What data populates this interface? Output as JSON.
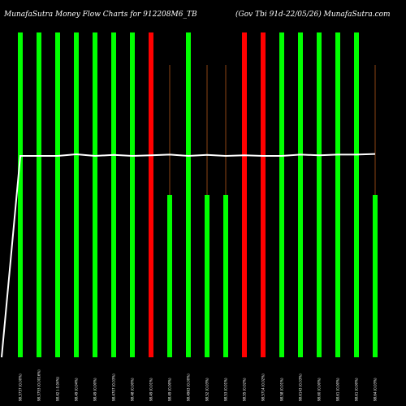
{
  "chart_data": {
    "type": "bar",
    "title": "MunafaSutra Money Flow Charts for 912208M6_TB",
    "subtitle": "(Gov Tbi 91d-22/05/26) MunafaSutra.com",
    "colors": {
      "background": "#000000",
      "up": "#00ff00",
      "down": "#ff0000",
      "line": "#ffffff",
      "wick": "#8b4513"
    },
    "ylim": [
      0,
      1
    ],
    "grid": false,
    "legend": "none",
    "bars": [
      {
        "label": "98.3737 (0.00%)",
        "value": 1.0,
        "color": "up",
        "wick": 1.0
      },
      {
        "label": "98.3753 (0.0016%)",
        "value": 1.0,
        "color": "up",
        "wick": 1.0
      },
      {
        "label": "98.42 (-0.04%)",
        "value": 1.0,
        "color": "up",
        "wick": 1.0
      },
      {
        "label": "98.49 (0.04%)",
        "value": 1.0,
        "color": "up",
        "wick": 1.0
      },
      {
        "label": "98.49 (0.00%)",
        "value": 1.0,
        "color": "up",
        "wick": 1.0
      },
      {
        "label": "98.4707 (0.03%)",
        "value": 1.0,
        "color": "up",
        "wick": 1.0
      },
      {
        "label": "98.48 (0.00%)",
        "value": 1.0,
        "color": "up",
        "wick": 1.0
      },
      {
        "label": "98.49 (0.01%)",
        "value": 1.0,
        "color": "down",
        "wick": 1.0
      },
      {
        "label": "98.49 (0.00%)",
        "value": 0.5,
        "color": "up",
        "wick": 0.9
      },
      {
        "label": "98.4963 (0.00%)",
        "value": 1.0,
        "color": "up",
        "wick": 1.0
      },
      {
        "label": "98.52 (0.03%)",
        "value": 0.5,
        "color": "up",
        "wick": 0.9
      },
      {
        "label": "98.53 (0.01%)",
        "value": 0.5,
        "color": "up",
        "wick": 0.9
      },
      {
        "label": "98.55 (0.02%)",
        "value": 1.0,
        "color": "down",
        "wick": 1.0
      },
      {
        "label": "98.5714 (0.02%)",
        "value": 1.0,
        "color": "down",
        "wick": 1.0
      },
      {
        "label": "98.58 (0.01%)",
        "value": 1.0,
        "color": "up",
        "wick": 1.0
      },
      {
        "label": "98.6143 (0.03%)",
        "value": 1.0,
        "color": "up",
        "wick": 1.0
      },
      {
        "label": "98.60 (0.00%)",
        "value": 1.0,
        "color": "up",
        "wick": 1.0
      },
      {
        "label": "98.61 (0.00%)",
        "value": 1.0,
        "color": "up",
        "wick": 1.0
      },
      {
        "label": "98.61 (0.00%)",
        "value": 1.0,
        "color": "up",
        "wick": 1.0
      },
      {
        "label": "98.64 (0.03%)",
        "value": 0.5,
        "color": "up",
        "wick": 0.9
      }
    ],
    "price_line": [
      0.0,
      0.62,
      0.62,
      0.62,
      0.625,
      0.62,
      0.623,
      0.62,
      0.622,
      0.624,
      0.62,
      0.623,
      0.62,
      0.622,
      0.62,
      0.62,
      0.624,
      0.622,
      0.624,
      0.624,
      0.626
    ]
  }
}
